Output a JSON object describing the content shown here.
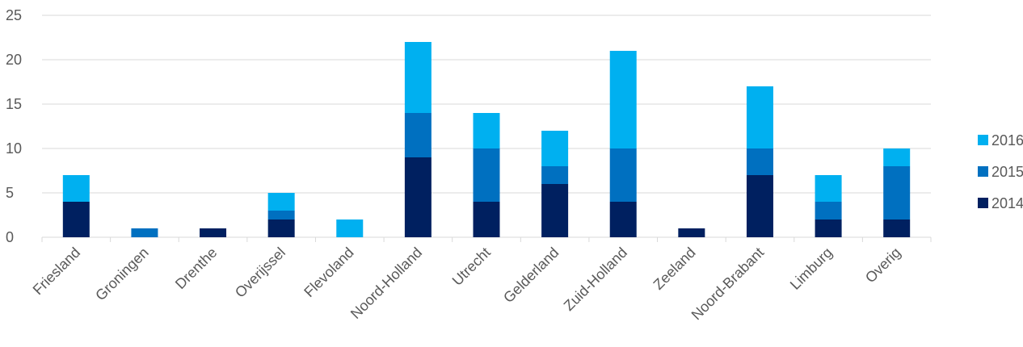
{
  "chart_data": {
    "type": "bar",
    "stacked": true,
    "categories": [
      "Friesland",
      "Groningen",
      "Drenthe",
      "Overijssel",
      "Flevoland",
      "Noord-Holland",
      "Utrecht",
      "Gelderland",
      "Zuid-Holland",
      "Zeeland",
      "Noord-Brabant",
      "Limburg",
      "Overig"
    ],
    "series": [
      {
        "name": "2014",
        "color": "#002060",
        "values": [
          4,
          0,
          1,
          2,
          0,
          9,
          4,
          6,
          4,
          1,
          7,
          2,
          2
        ]
      },
      {
        "name": "2015",
        "color": "#0070c0",
        "values": [
          0,
          1,
          0,
          1,
          0,
          5,
          6,
          2,
          6,
          0,
          3,
          2,
          6
        ]
      },
      {
        "name": "2016",
        "color": "#00b0f0",
        "values": [
          3,
          0,
          0,
          2,
          2,
          8,
          4,
          4,
          11,
          0,
          7,
          3,
          2
        ]
      }
    ],
    "y_ticks": [
      "0",
      "5",
      "10",
      "15",
      "20",
      "25"
    ],
    "ylim": [
      0,
      25
    ],
    "grid": true,
    "legend": {
      "placement": "right",
      "order": [
        "2016",
        "2015",
        "2014"
      ]
    },
    "title": "",
    "xlabel": "",
    "ylabel": ""
  }
}
